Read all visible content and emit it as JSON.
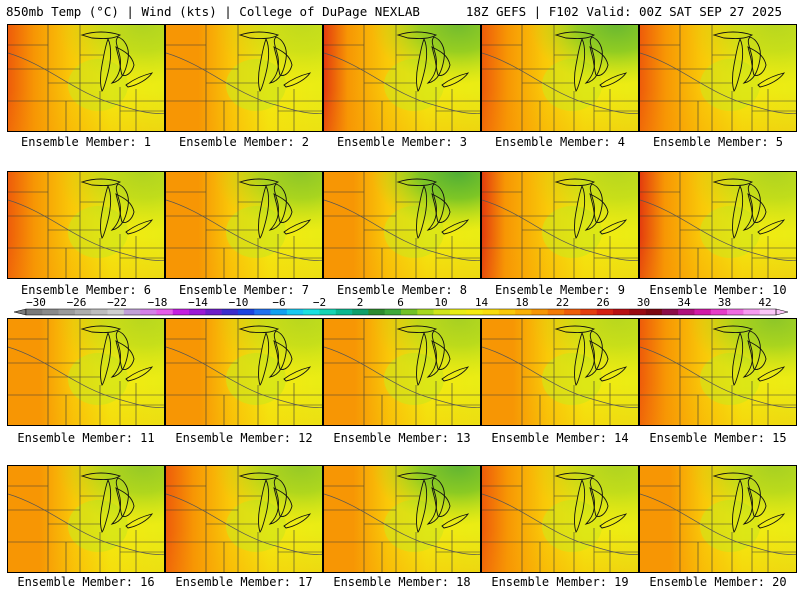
{
  "header": {
    "left": "850mb Temp (°C) | Wind (kts) | College of DuPage NEXLAB",
    "right": "18Z GEFS | F102 Valid: 00Z SAT SEP 27 2025"
  },
  "colorbar": {
    "labels": [
      "-30",
      "-26",
      "-22",
      "-18",
      "-14",
      "-10",
      "-6",
      "-2",
      "2",
      "6",
      "10",
      "14",
      "18",
      "22",
      "26",
      "30",
      "34",
      "38",
      "42"
    ],
    "colors": [
      "#7a7a7a",
      "#8a8a8a",
      "#9a9a9a",
      "#adadad",
      "#bdbdbd",
      "#cfcfcf",
      "#c0a0d8",
      "#d37fe8",
      "#e65ce8",
      "#c41ee0",
      "#9b19d6",
      "#6e1ec8",
      "#3c2dcc",
      "#1b44e0",
      "#2171f0",
      "#12a0f0",
      "#18c8f0",
      "#1ae0e0",
      "#16d4b4",
      "#0cb890",
      "#0fa06a",
      "#2e8b2e",
      "#3fa83a",
      "#72c227",
      "#a6d81e",
      "#cfe51a",
      "#e9ec15",
      "#f4ea0f",
      "#f8dc0c",
      "#f9c808",
      "#f9b005",
      "#f79604",
      "#f47a06",
      "#ee5c0a",
      "#e43d0e",
      "#d41f12",
      "#b80f14",
      "#9a0a12",
      "#7c0810",
      "#8c0c48",
      "#b0107c",
      "#d21aa6",
      "#e63cc8",
      "#f06ae0",
      "#f79af0",
      "#fbc6f8"
    ]
  },
  "members": [
    {
      "label": "Ensemble Member: 1",
      "green": 0.35,
      "red": 0.55,
      "warm": 0.5
    },
    {
      "label": "Ensemble Member: 2",
      "green": 0.25,
      "red": 0.15,
      "warm": 0.25
    },
    {
      "label": "Ensemble Member: 3",
      "green": 0.7,
      "red": 0.7,
      "warm": 0.55
    },
    {
      "label": "Ensemble Member: 4",
      "green": 0.75,
      "red": 0.6,
      "warm": 0.55
    },
    {
      "label": "Ensemble Member: 5",
      "green": 0.3,
      "red": 0.6,
      "warm": 0.55
    },
    {
      "label": "Ensemble Member: 6",
      "green": 0.35,
      "red": 0.55,
      "warm": 0.45
    },
    {
      "label": "Ensemble Member: 7",
      "green": 0.55,
      "red": 0.15,
      "warm": 0.35
    },
    {
      "label": "Ensemble Member: 8",
      "green": 0.9,
      "red": 0.35,
      "warm": 0.5
    },
    {
      "label": "Ensemble Member: 9",
      "green": 0.3,
      "red": 0.75,
      "warm": 0.4
    },
    {
      "label": "Ensemble Member: 10",
      "green": 0.35,
      "red": 0.65,
      "warm": 0.6
    },
    {
      "label": "Ensemble Member: 11",
      "green": 0.3,
      "red": 0.2,
      "warm": 0.35
    },
    {
      "label": "Ensemble Member: 12",
      "green": 0.3,
      "red": 0.1,
      "warm": 0.3
    },
    {
      "label": "Ensemble Member: 13",
      "green": 0.4,
      "red": 0.25,
      "warm": 0.35
    },
    {
      "label": "Ensemble Member: 14",
      "green": 0.3,
      "red": 0.25,
      "warm": 0.4
    },
    {
      "label": "Ensemble Member: 15",
      "green": 0.55,
      "red": 0.6,
      "warm": 0.45
    },
    {
      "label": "Ensemble Member: 16",
      "green": 0.5,
      "red": 0.2,
      "warm": 0.3
    },
    {
      "label": "Ensemble Member: 17",
      "green": 0.5,
      "red": 0.45,
      "warm": 0.45
    },
    {
      "label": "Ensemble Member: 18",
      "green": 0.8,
      "red": 0.35,
      "warm": 0.5
    },
    {
      "label": "Ensemble Member: 19",
      "green": 0.35,
      "red": 0.6,
      "warm": 0.55
    },
    {
      "label": "Ensemble Member: 20",
      "green": 0.4,
      "red": 0.3,
      "warm": 0.45
    }
  ]
}
